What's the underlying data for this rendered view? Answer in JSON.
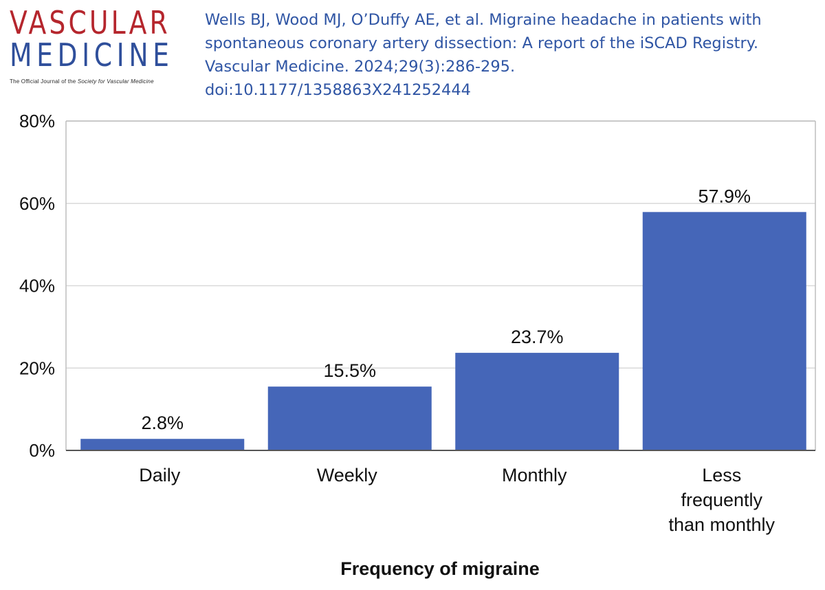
{
  "logo": {
    "line1": "VASCULAR",
    "line2": "MEDICINE",
    "tagline_prefix": "The Official Journal of the ",
    "tagline_society": "Society for Vascular Medicine"
  },
  "citation": {
    "line1": "Wells BJ, Wood MJ, O’Duffy AE, et al. Migraine headache in patients with",
    "line2": "spontaneous coronary artery dissection: A report of the iSCAD Registry.",
    "line3": "Vascular Medicine. 2024;29(3):286-295.",
    "line4": "doi:10.1177/1358863X241252444"
  },
  "colors": {
    "bar": "#4566b8",
    "grid": "#d9d9d9",
    "logo_red": "#b5262d",
    "logo_blue": "#2f4f9b",
    "citation": "#2f55a4"
  },
  "chart_data": {
    "type": "bar",
    "categories": [
      [
        "Daily"
      ],
      [
        "Weekly"
      ],
      [
        "Monthly"
      ],
      [
        "Less",
        "frequently",
        "than monthly"
      ]
    ],
    "values": [
      2.8,
      15.5,
      23.7,
      57.9
    ],
    "data_labels": [
      "2.8%",
      "15.5%",
      "23.7%",
      "57.9%"
    ],
    "xlabel": "Frequency of migraine",
    "ylabel": "",
    "ylim": [
      0,
      80
    ],
    "yticks": [
      0,
      20,
      40,
      60,
      80
    ],
    "ytick_labels": [
      "0%",
      "20%",
      "40%",
      "60%",
      "80%"
    ],
    "grid": "horizontal"
  }
}
